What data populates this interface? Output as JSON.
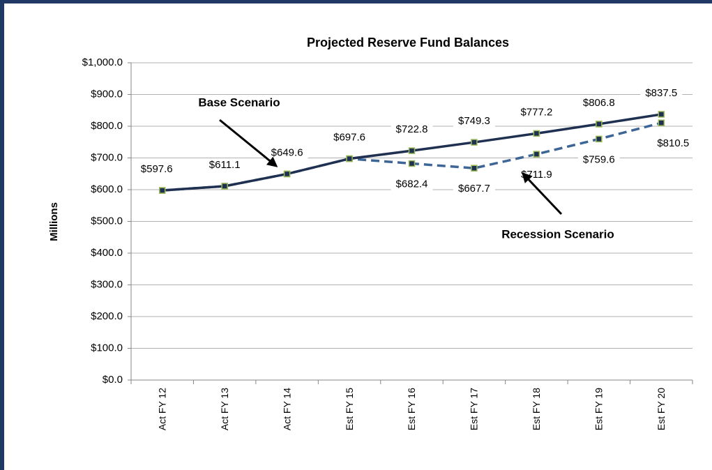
{
  "chart_data": {
    "type": "line",
    "title": "Projected Reserve Fund Balances",
    "y_label": "Millions",
    "categories": [
      "Act FY 12",
      "Act FY 13",
      "Act FY 14",
      "Est FY 15",
      "Est FY 16",
      "Est FY 17",
      "Est FY 18",
      "Est FY 19",
      "Est FY 20"
    ],
    "series": [
      {
        "name": "Recession Scenario",
        "color": "#3d6696",
        "dashed": true,
        "values": [
          597.6,
          611.1,
          649.6,
          697.6,
          682.4,
          667.7,
          711.9,
          759.6,
          810.5
        ],
        "value_labels": [
          null,
          null,
          null,
          null,
          "$682.4",
          "$667.7",
          "$711.9",
          "$759.6",
          "$810.5"
        ]
      },
      {
        "name": "Base Scenario",
        "color": "#1f3050",
        "dashed": false,
        "values": [
          597.6,
          611.1,
          649.6,
          697.6,
          722.8,
          749.3,
          777.2,
          806.8,
          837.5
        ],
        "value_labels": [
          "$597.6",
          "$611.1",
          "$649.6",
          "$697.6",
          "$722.8",
          "$749.3",
          "$777.2",
          "$806.8",
          "$837.5"
        ]
      }
    ],
    "marker_fill": "#1f3050",
    "marker_edge": "#9bbb59",
    "ylim": [
      0,
      1000
    ],
    "yticks": [
      {
        "value": 0,
        "label": "$0.0"
      },
      {
        "value": 100,
        "label": "$100.0"
      },
      {
        "value": 200,
        "label": "$200.0"
      },
      {
        "value": 300,
        "label": "$300.0"
      },
      {
        "value": 400,
        "label": "$400.0"
      },
      {
        "value": 500,
        "label": "$500.0"
      },
      {
        "value": 600,
        "label": "$600.0"
      },
      {
        "value": 700,
        "label": "$700.0"
      },
      {
        "value": 800,
        "label": "$800.0"
      },
      {
        "value": 900,
        "label": "$900.0"
      },
      {
        "value": 1000,
        "label": "$1,000.0"
      }
    ],
    "grid": true
  }
}
